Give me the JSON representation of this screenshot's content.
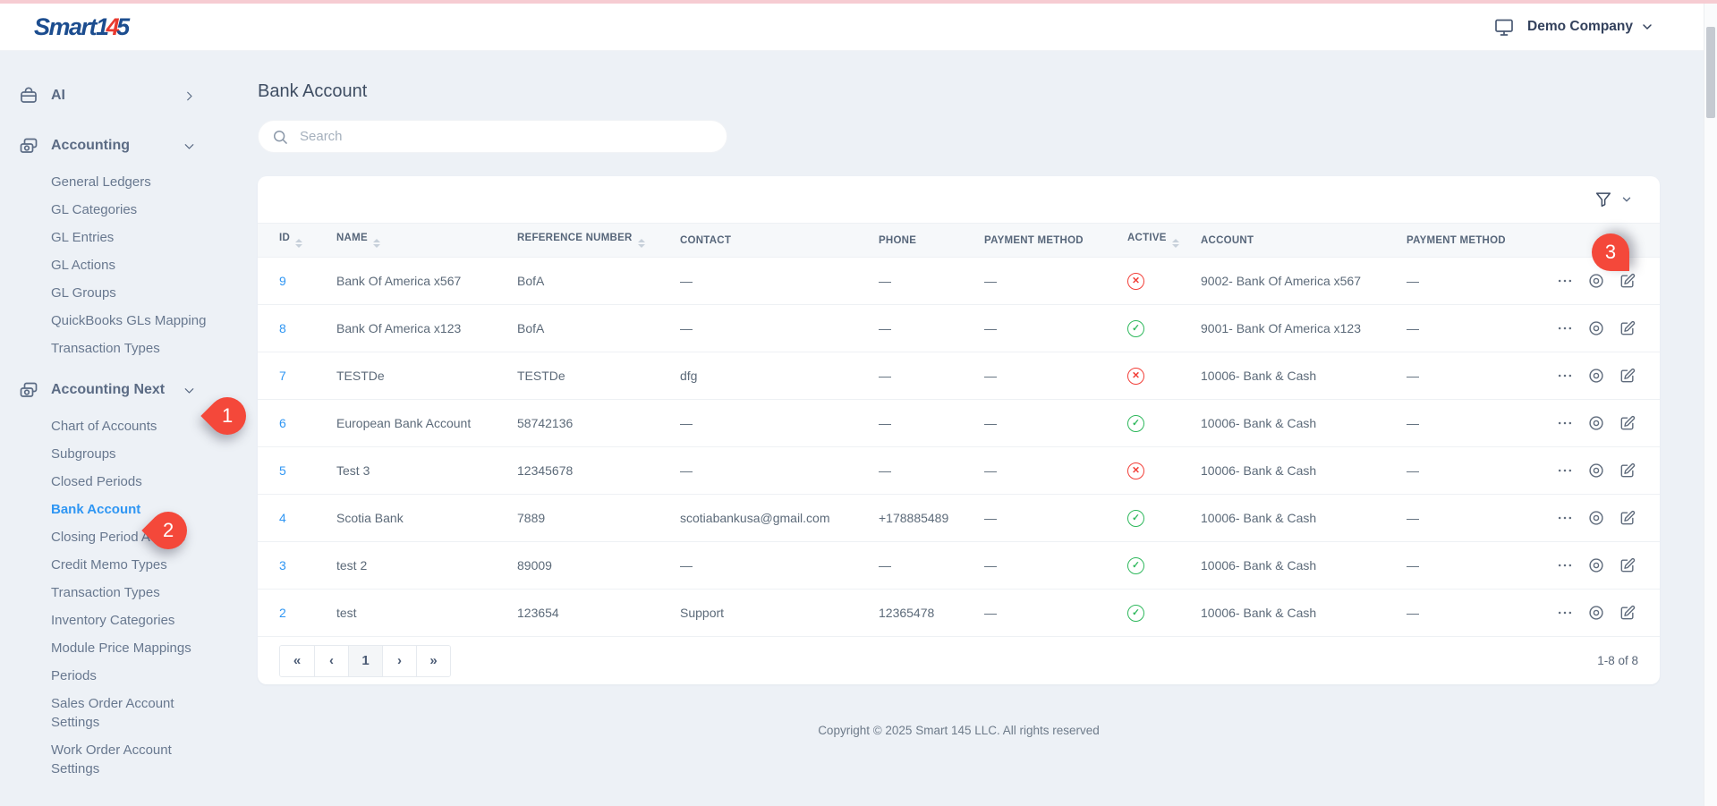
{
  "brand": {
    "word": "Smart",
    "d1": "1",
    "d2": "4",
    "d3": "5"
  },
  "header": {
    "company": "Demo Company"
  },
  "sidebar": {
    "sections": [
      {
        "id": "ai",
        "label": "AI",
        "icon": "ai",
        "chevron": "right",
        "items": []
      },
      {
        "id": "accounting",
        "label": "Accounting",
        "icon": "cash",
        "chevron": "down",
        "items": [
          {
            "label": "General Ledgers"
          },
          {
            "label": "GL Categories"
          },
          {
            "label": "GL Entries"
          },
          {
            "label": "GL Actions"
          },
          {
            "label": "GL Groups"
          },
          {
            "label": "QuickBooks GLs Mapping"
          },
          {
            "label": "Transaction Types"
          }
        ]
      },
      {
        "id": "accounting-next",
        "label": "Accounting Next",
        "icon": "cash",
        "chevron": "down",
        "items": [
          {
            "label": "Chart of Accounts"
          },
          {
            "label": "Subgroups"
          },
          {
            "label": "Closed Periods"
          },
          {
            "label": "Bank Account",
            "active": true
          },
          {
            "label": "Closing Period Actions"
          },
          {
            "label": "Credit Memo Types"
          },
          {
            "label": "Transaction Types"
          },
          {
            "label": "Inventory Categories"
          },
          {
            "label": "Module Price Mappings"
          },
          {
            "label": "Periods"
          },
          {
            "label": "Sales Order Account Settings"
          },
          {
            "label": "Work Order Account Settings"
          }
        ]
      }
    ]
  },
  "page": {
    "title": "Bank Account",
    "search_placeholder": "Search"
  },
  "table": {
    "columns": [
      {
        "key": "id",
        "label": "ID",
        "sortable": true
      },
      {
        "key": "name",
        "label": "NAME",
        "sortable": true
      },
      {
        "key": "reference",
        "label": "REFERENCE NUMBER",
        "sortable": true
      },
      {
        "key": "contact",
        "label": "CONTACT",
        "sortable": false
      },
      {
        "key": "phone",
        "label": "PHONE",
        "sortable": false
      },
      {
        "key": "payment_method",
        "label": "PAYMENT METHOD",
        "sortable": false
      },
      {
        "key": "active",
        "label": "ACTIVE",
        "sortable": true
      },
      {
        "key": "account",
        "label": "ACCOUNT",
        "sortable": false
      },
      {
        "key": "payment_method_2",
        "label": "PAYMENT METHOD",
        "sortable": false
      },
      {
        "key": "actions",
        "label": "",
        "sortable": false
      }
    ],
    "status_glyphs": {
      "active": "✓",
      "inactive": "✕"
    },
    "rows": [
      {
        "id": "9",
        "name": "Bank Of America x567",
        "reference": "BofA",
        "contact": "—",
        "phone": "—",
        "payment_method": "—",
        "active": false,
        "account": "9002- Bank Of America x567",
        "payment_method_2": "—"
      },
      {
        "id": "8",
        "name": "Bank Of America x123",
        "reference": "BofA",
        "contact": "—",
        "phone": "—",
        "payment_method": "—",
        "active": true,
        "account": "9001- Bank Of America x123",
        "payment_method_2": "—"
      },
      {
        "id": "7",
        "name": "TESTDe",
        "reference": "TESTDe",
        "contact": "dfg",
        "phone": "—",
        "payment_method": "—",
        "active": false,
        "account": "10006- Bank & Cash",
        "payment_method_2": "—"
      },
      {
        "id": "6",
        "name": "European Bank Account",
        "reference": "58742136",
        "contact": "—",
        "phone": "—",
        "payment_method": "—",
        "active": true,
        "account": "10006- Bank & Cash",
        "payment_method_2": "—"
      },
      {
        "id": "5",
        "name": "Test 3",
        "reference": "12345678",
        "contact": "—",
        "phone": "—",
        "payment_method": "—",
        "active": false,
        "account": "10006- Bank & Cash",
        "payment_method_2": "—"
      },
      {
        "id": "4",
        "name": "Scotia Bank",
        "reference": "7889",
        "contact": "scotiabankusa@gmail.com",
        "phone": "+178885489",
        "payment_method": "—",
        "active": true,
        "account": "10006- Bank & Cash",
        "payment_method_2": "—"
      },
      {
        "id": "3",
        "name": "test 2",
        "reference": "89009",
        "contact": "—",
        "phone": "—",
        "payment_method": "—",
        "active": true,
        "account": "10006- Bank & Cash",
        "payment_method_2": "—"
      },
      {
        "id": "2",
        "name": "test",
        "reference": "123654",
        "contact": "Support",
        "phone": "12365478",
        "payment_method": "—",
        "active": true,
        "account": "10006- Bank & Cash",
        "payment_method_2": "—"
      }
    ]
  },
  "pagination": {
    "buttons": [
      {
        "label": "«",
        "name": "first-page"
      },
      {
        "label": "‹",
        "name": "prev-page"
      },
      {
        "label": "1",
        "name": "page-1",
        "active": true
      },
      {
        "label": "›",
        "name": "next-page"
      },
      {
        "label": "»",
        "name": "last-page"
      }
    ],
    "range_label": "1-8 of 8"
  },
  "footer": {
    "copyright": "Copyright © 2025 Smart 145 LLC. All rights reserved"
  },
  "annotations": [
    {
      "number": "1"
    },
    {
      "number": "2"
    },
    {
      "number": "3"
    }
  ],
  "colors": {
    "brand_blue": "#1c4d8f",
    "brand_red": "#e8392f",
    "accent_blue": "#2f96f3",
    "active_green": "#2eb85c",
    "inactive_red": "#f23f38",
    "balloon_red": "#f4483a",
    "background": "#edf1f6",
    "top_stripe": "#f6ccd2"
  }
}
